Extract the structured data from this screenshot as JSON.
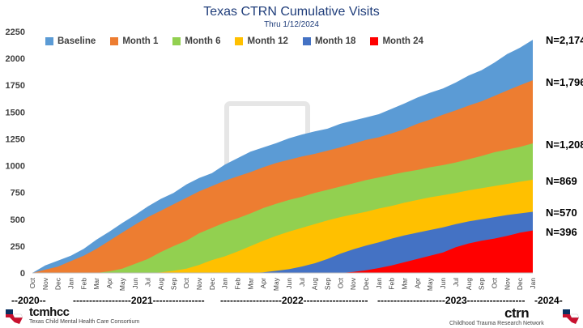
{
  "header": {
    "title": "Texas CTRN Cumulative Visits",
    "subtitle": "Thru 1/12/2024"
  },
  "colors": {
    "baseline": "#5b9bd5",
    "month1": "#ed7d31",
    "month6": "#92d050",
    "month12": "#ffc000",
    "month18": "#4472c4",
    "month24": "#ff0000"
  },
  "end_labels": [
    "N=2,174",
    "N=1,796",
    "N=1,208",
    "N=869",
    "N=570",
    "N=396"
  ],
  "year_band": {
    "y2020": "--2020--",
    "y2021": "------------------2021----------------",
    "y2022": "-------------------2022--------------------",
    "y2023": "---------------------2023------------------",
    "y2024": "-2024-"
  },
  "logos": {
    "left_name": "tcmhcc",
    "left_caption": "Texas Child Mental Health Care Consortium",
    "right_name": "ctrn",
    "right_caption": "Childhood Trauma Research Network"
  },
  "chart_data": {
    "type": "area",
    "title": "Texas CTRN Cumulative Visits",
    "subtitle": "Thru 1/12/2024",
    "xlabel": "",
    "ylabel": "",
    "ylim": [
      0,
      2250
    ],
    "yticks": [
      0,
      250,
      500,
      750,
      1000,
      1250,
      1500,
      1750,
      2000,
      2250
    ],
    "stacked": true,
    "legend_position": "top",
    "grid": false,
    "categories": [
      "Oct",
      "Nov",
      "Dec",
      "Jan",
      "Feb",
      "Mar",
      "Apr",
      "May",
      "Jun",
      "Jul",
      "Aug",
      "Sep",
      "Oct",
      "Nov",
      "Dec",
      "Jan",
      "Feb",
      "Mar",
      "Apr",
      "May",
      "Jun",
      "Jul",
      "Aug",
      "Sep",
      "Oct",
      "Nov",
      "Dec",
      "Jan",
      "Feb",
      "Mar",
      "Apr",
      "May",
      "Jun",
      "Jul",
      "Aug",
      "Sep",
      "Oct",
      "Nov",
      "Dec",
      "Jan"
    ],
    "series": [
      {
        "name": "Month 24",
        "values": [
          0,
          0,
          0,
          0,
          0,
          0,
          0,
          0,
          0,
          0,
          0,
          0,
          0,
          0,
          0,
          0,
          0,
          0,
          0,
          0,
          0,
          0,
          0,
          0,
          0,
          0,
          10,
          25,
          50,
          80,
          115,
          150,
          190,
          240,
          275,
          300,
          325,
          355,
          380,
          396
        ]
      },
      {
        "name": "Month 18",
        "values": [
          0,
          0,
          0,
          0,
          0,
          0,
          0,
          0,
          0,
          0,
          0,
          0,
          0,
          0,
          0,
          0,
          0,
          0,
          0,
          10,
          30,
          55,
          85,
          125,
          170,
          215,
          240,
          270,
          300,
          330,
          345,
          365,
          385,
          410,
          430,
          440,
          450,
          460,
          460,
          570
        ]
      },
      {
        "name": "Month 12",
        "values": [
          0,
          0,
          0,
          0,
          0,
          0,
          0,
          0,
          0,
          5,
          15,
          35,
          55,
          90,
          125,
          160,
          210,
          255,
          310,
          345,
          390,
          425,
          460,
          500,
          540,
          565,
          580,
          600,
          615,
          625,
          630,
          640,
          650,
          660,
          680,
          695,
          715,
          725,
          735,
          869
        ]
      },
      {
        "name": "Month 6",
        "values": [
          0,
          0,
          0,
          0,
          5,
          15,
          35,
          65,
          110,
          150,
          200,
          245,
          300,
          365,
          415,
          460,
          500,
          540,
          580,
          625,
          665,
          690,
          720,
          750,
          780,
          810,
          830,
          850,
          870,
          890,
          915,
          940,
          965,
          990,
          1010,
          1030,
          1045,
          1060,
          1075,
          1208
        ]
      },
      {
        "name": "Month 1",
        "values": [
          0,
          30,
          60,
          100,
          145,
          200,
          270,
          340,
          420,
          490,
          545,
          600,
          660,
          720,
          790,
          840,
          890,
          920,
          970,
          1010,
          1040,
          1070,
          1100,
          1130,
          1160,
          1190,
          1230,
          1260,
          1290,
          1320,
          1360,
          1390,
          1430,
          1460,
          1495,
          1530,
          1565,
          1590,
          1615,
          1796
        ]
      },
      {
        "name": "Baseline",
        "values": [
          0,
          40,
          80,
          125,
          175,
          235,
          300,
          370,
          440,
          505,
          565,
          620,
          680,
          745,
          800,
          860,
          910,
          955,
          1000,
          1045,
          1085,
          1120,
          1160,
          1200,
          1245,
          1280,
          1320,
          1355,
          1390,
          1430,
          1465,
          1500,
          1540,
          1575,
          1620,
          1660,
          1700,
          1730,
          1760,
          2174
        ]
      }
    ],
    "cumulative_totals_by_series": {
      "Baseline": 2174,
      "Month 1": 1796,
      "Month 6": 1208,
      "Month 12": 869,
      "Month 18": 570,
      "Month 24": 396
    },
    "stack_tops": {
      "Baseline": [
        0,
        70,
        115,
        160,
        225,
        310,
        385,
        465,
        540,
        620,
        690,
        745,
        825,
        885,
        930,
        1010,
        1070,
        1130,
        1170,
        1210,
        1255,
        1290,
        1320,
        1345,
        1390,
        1420,
        1450,
        1480,
        1530,
        1580,
        1635,
        1680,
        1720,
        1775,
        1840,
        1890,
        1960,
        2040,
        2100,
        2174
      ],
      "Month 1": [
        0,
        30,
        60,
        110,
        160,
        225,
        300,
        375,
        450,
        520,
        580,
        640,
        700,
        760,
        810,
        860,
        900,
        940,
        985,
        1025,
        1055,
        1085,
        1110,
        1140,
        1170,
        1205,
        1240,
        1265,
        1300,
        1340,
        1390,
        1430,
        1475,
        1515,
        1560,
        1600,
        1650,
        1700,
        1750,
        1796
      ],
      "Month 6": [
        0,
        0,
        0,
        0,
        0,
        0,
        15,
        40,
        85,
        130,
        195,
        250,
        300,
        370,
        420,
        470,
        510,
        555,
        605,
        645,
        680,
        710,
        745,
        775,
        805,
        835,
        865,
        890,
        915,
        940,
        960,
        985,
        1005,
        1030,
        1060,
        1090,
        1125,
        1150,
        1175,
        1208
      ],
      "Month 12": [
        0,
        0,
        0,
        0,
        0,
        0,
        0,
        0,
        0,
        0,
        5,
        20,
        40,
        75,
        120,
        155,
        200,
        250,
        300,
        345,
        385,
        420,
        455,
        490,
        520,
        545,
        570,
        600,
        625,
        655,
        680,
        705,
        725,
        745,
        770,
        790,
        810,
        830,
        850,
        869
      ],
      "Month 18": [
        0,
        0,
        0,
        0,
        0,
        0,
        0,
        0,
        0,
        0,
        0,
        0,
        0,
        0,
        0,
        0,
        0,
        0,
        5,
        20,
        35,
        60,
        90,
        130,
        180,
        220,
        255,
        285,
        320,
        350,
        375,
        400,
        425,
        455,
        480,
        500,
        520,
        540,
        555,
        570
      ],
      "Month 24": [
        0,
        0,
        0,
        0,
        0,
        0,
        0,
        0,
        0,
        0,
        0,
        0,
        0,
        0,
        0,
        0,
        0,
        0,
        0,
        0,
        0,
        0,
        0,
        0,
        0,
        10,
        25,
        45,
        70,
        100,
        130,
        160,
        190,
        240,
        275,
        300,
        320,
        345,
        375,
        396
      ]
    }
  },
  "legend": [
    {
      "name": "Baseline",
      "color": "#5b9bd5"
    },
    {
      "name": "Month 1",
      "color": "#ed7d31"
    },
    {
      "name": "Month 6",
      "color": "#92d050"
    },
    {
      "name": "Month 12",
      "color": "#ffc000"
    },
    {
      "name": "Month 18",
      "color": "#4472c4"
    },
    {
      "name": "Month 24",
      "color": "#ff0000"
    }
  ]
}
